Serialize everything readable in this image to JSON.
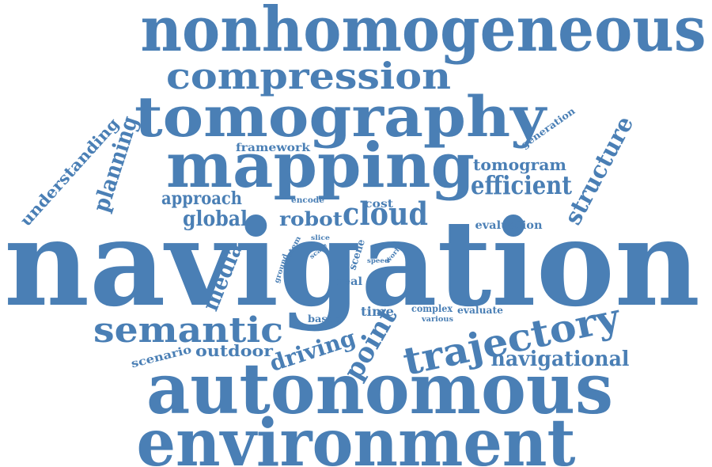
{
  "cloud": {
    "color": "#4a7fb5",
    "words": [
      {
        "text": "nonhomogeneous",
        "w": 10
      },
      {
        "text": "compression",
        "w": 5
      },
      {
        "text": "tomography",
        "w": 8
      },
      {
        "text": "mapping",
        "w": 9
      },
      {
        "text": "navigation",
        "w": 18
      },
      {
        "text": "autonomous",
        "w": 10
      },
      {
        "text": "environment",
        "w": 9
      },
      {
        "text": "semantic",
        "w": 5
      },
      {
        "text": "trajectory",
        "w": 5
      },
      {
        "text": "cloud",
        "w": 4
      },
      {
        "text": "efficient",
        "w": 3
      },
      {
        "text": "structure",
        "w": 3
      },
      {
        "text": "planning",
        "w": 3
      },
      {
        "text": "understanding",
        "w": 2
      },
      {
        "text": "point",
        "w": 4
      },
      {
        "text": "driving",
        "w": 3
      },
      {
        "text": "navigational",
        "w": 2
      },
      {
        "text": "media",
        "w": 2
      },
      {
        "text": "global",
        "w": 2
      },
      {
        "text": "robot",
        "w": 2
      },
      {
        "text": "approach",
        "w": 2
      },
      {
        "text": "tomogram",
        "w": 2
      },
      {
        "text": "outdoor",
        "w": 2
      },
      {
        "text": "framework",
        "w": 1
      },
      {
        "text": "generation",
        "w": 1
      },
      {
        "text": "evaluation",
        "w": 1
      },
      {
        "text": "cost",
        "w": 1
      },
      {
        "text": "encode",
        "w": 1
      },
      {
        "text": "scene",
        "w": 1
      },
      {
        "text": "real",
        "w": 1
      },
      {
        "text": "time",
        "w": 1
      },
      {
        "text": "complex",
        "w": 1
      },
      {
        "text": "evaluate",
        "w": 1
      },
      {
        "text": "various",
        "w": 1
      },
      {
        "text": "based",
        "w": 1
      },
      {
        "text": "scenario",
        "w": 1
      },
      {
        "text": "system",
        "w": 1
      },
      {
        "text": "ground",
        "w": 1
      },
      {
        "text": "slice",
        "w": 1
      },
      {
        "text": "scale",
        "w": 1
      },
      {
        "text": "speed",
        "w": 1
      },
      {
        "text": "world",
        "w": 1
      }
    ]
  }
}
